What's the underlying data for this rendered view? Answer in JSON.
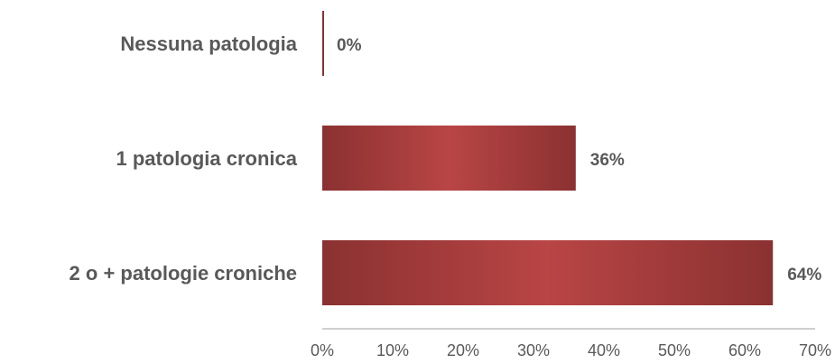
{
  "chart_data": {
    "type": "bar",
    "orientation": "horizontal",
    "categories": [
      "Nessuna patologia",
      "1 patologia cronica",
      "2 o + patologie croniche"
    ],
    "values": [
      0,
      36,
      64
    ],
    "value_labels": [
      "0%",
      "36%",
      "64%"
    ],
    "xlim": [
      0,
      70
    ],
    "xticks": [
      0,
      10,
      20,
      30,
      40,
      50,
      60,
      70
    ],
    "xtick_labels": [
      "0%",
      "10%",
      "20%",
      "30%",
      "40%",
      "50%",
      "60%",
      "70%"
    ],
    "title": "",
    "xlabel": "",
    "ylabel": "",
    "grid": false,
    "legend": false,
    "colors": {
      "bar_edge": "#8b3131",
      "bar_center": "#b94545",
      "text": "#595959",
      "axis": "#bfbfbf"
    }
  }
}
